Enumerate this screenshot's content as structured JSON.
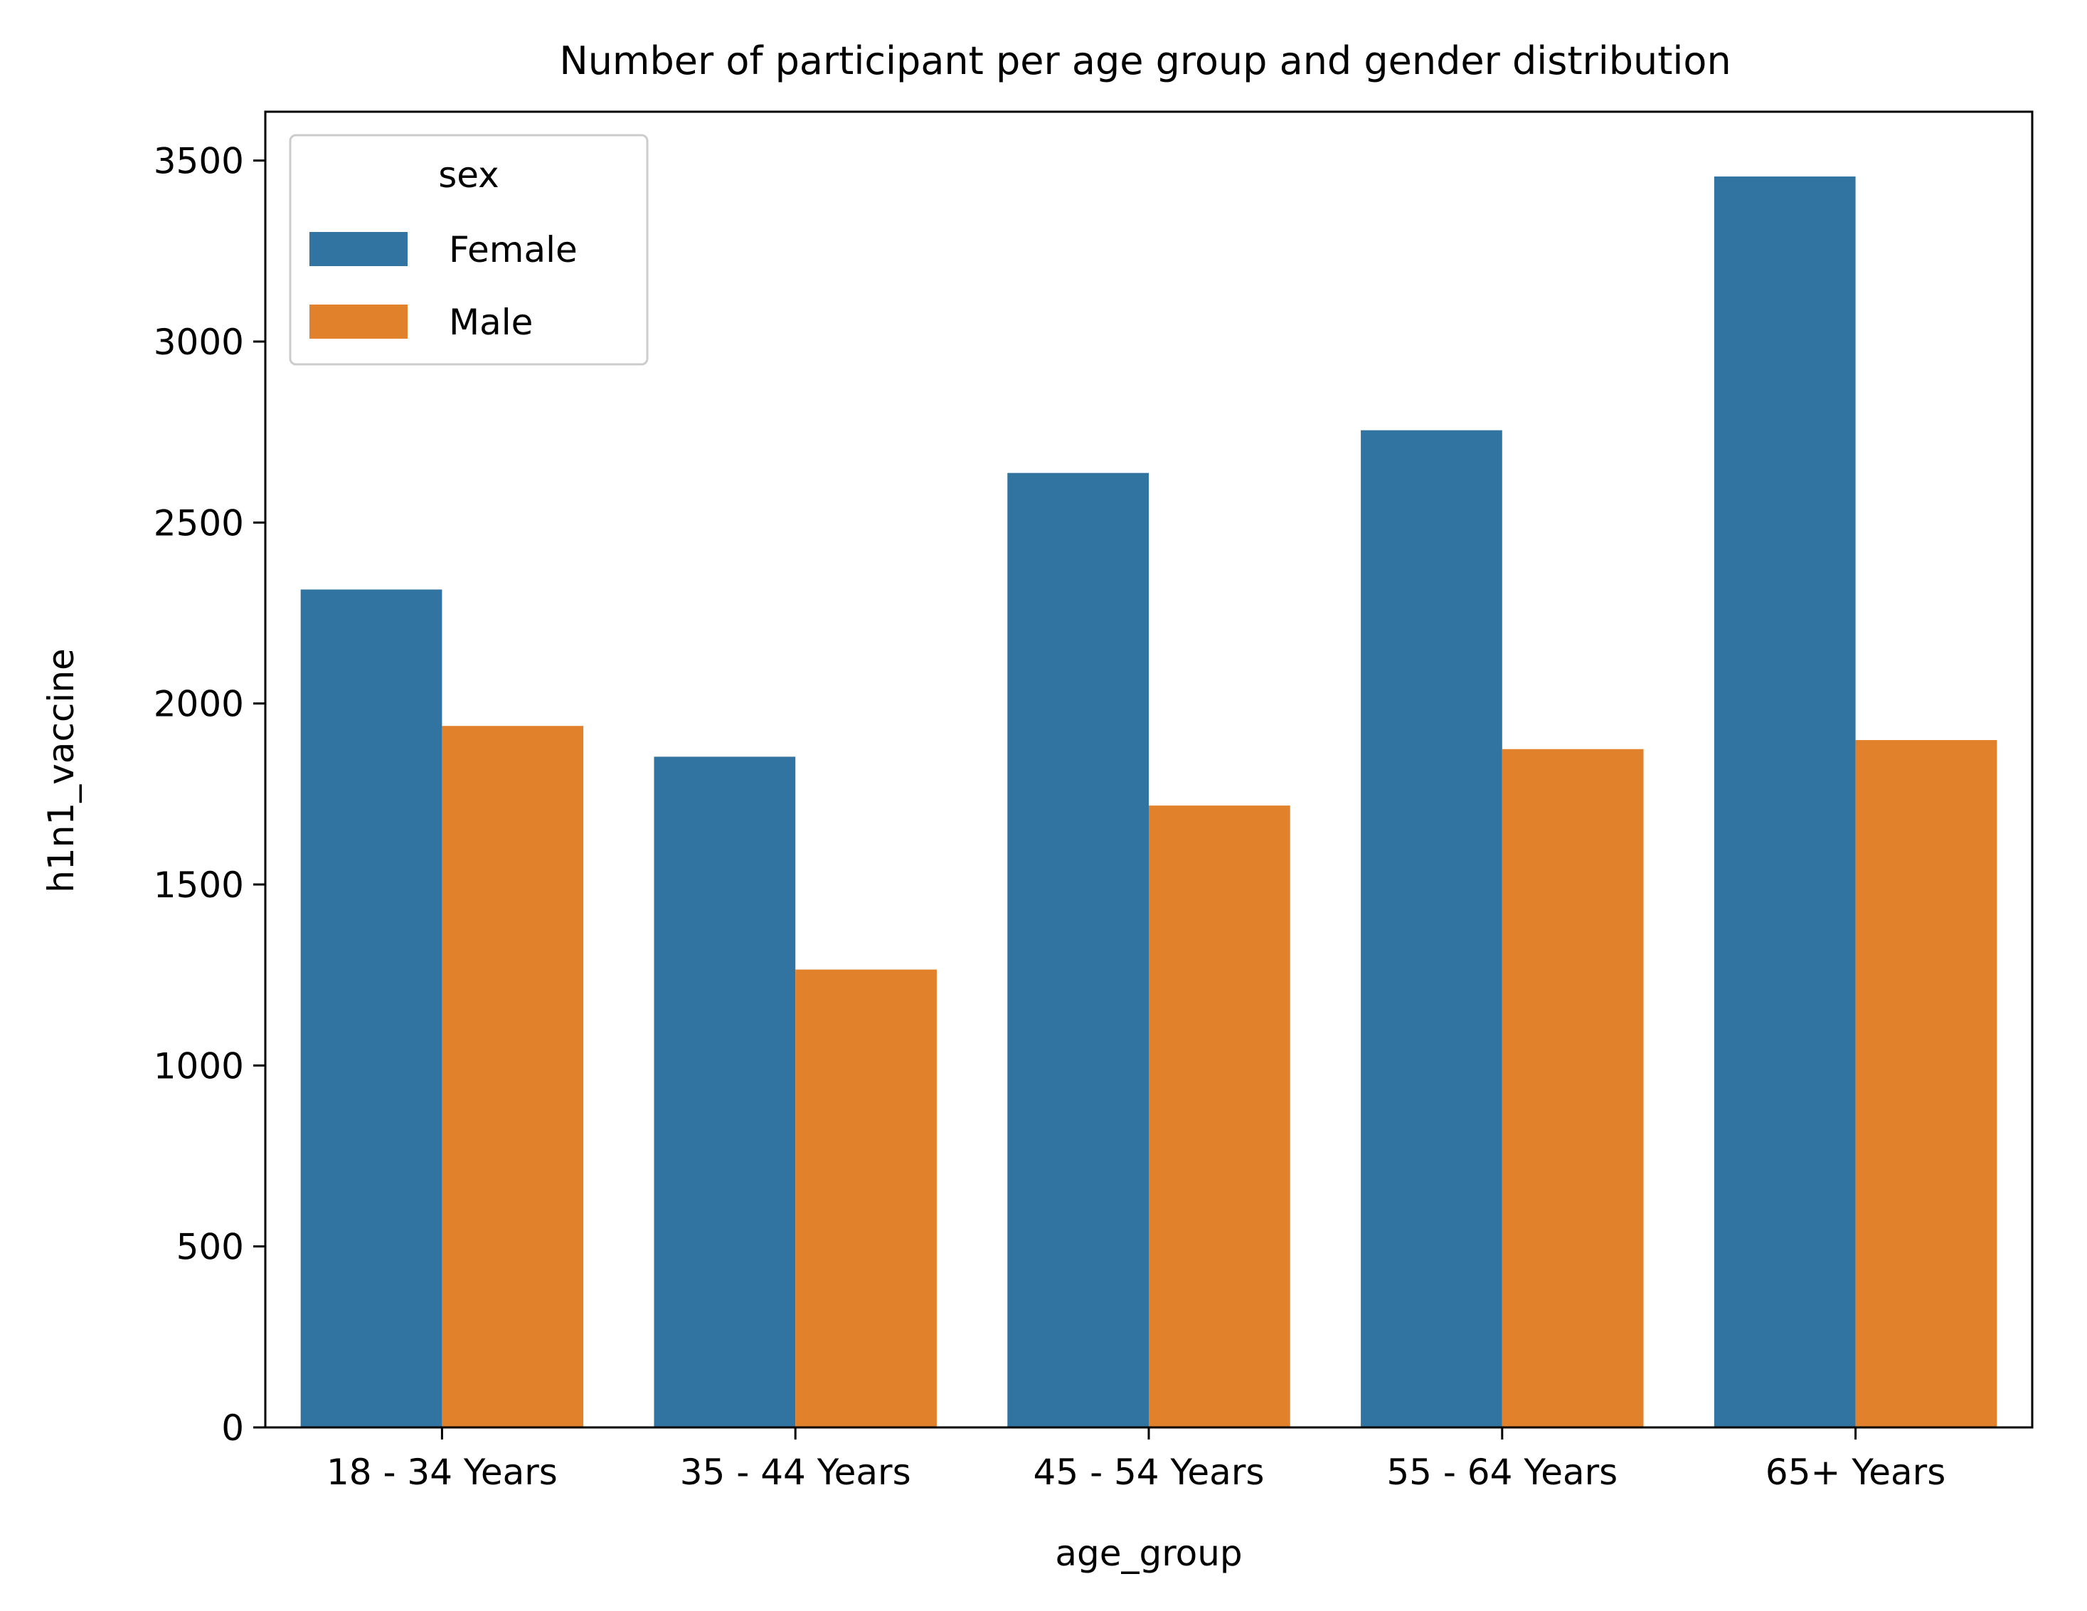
{
  "chart_data": {
    "type": "bar",
    "title": "Number of participant per age group and gender distribution",
    "xlabel": "age_group",
    "ylabel": "h1n1_vaccine",
    "categories": [
      "18 - 34 Years",
      "35 - 44 Years",
      "45 - 54 Years",
      "55 - 64 Years",
      "65+ Years"
    ],
    "series": [
      {
        "name": "Female",
        "color": "#3274a1",
        "values": [
          2315,
          1853,
          2637,
          2755,
          3456
        ]
      },
      {
        "name": "Male",
        "color": "#e1812c",
        "values": [
          1938,
          1265,
          1718,
          1874,
          1899
        ]
      }
    ],
    "ylim": [
      0,
      3635
    ],
    "yticks": [
      0,
      500,
      1000,
      1500,
      2000,
      2500,
      3000,
      3500
    ],
    "legend": {
      "title": "sex",
      "position": "top-left"
    },
    "grid": false
  }
}
